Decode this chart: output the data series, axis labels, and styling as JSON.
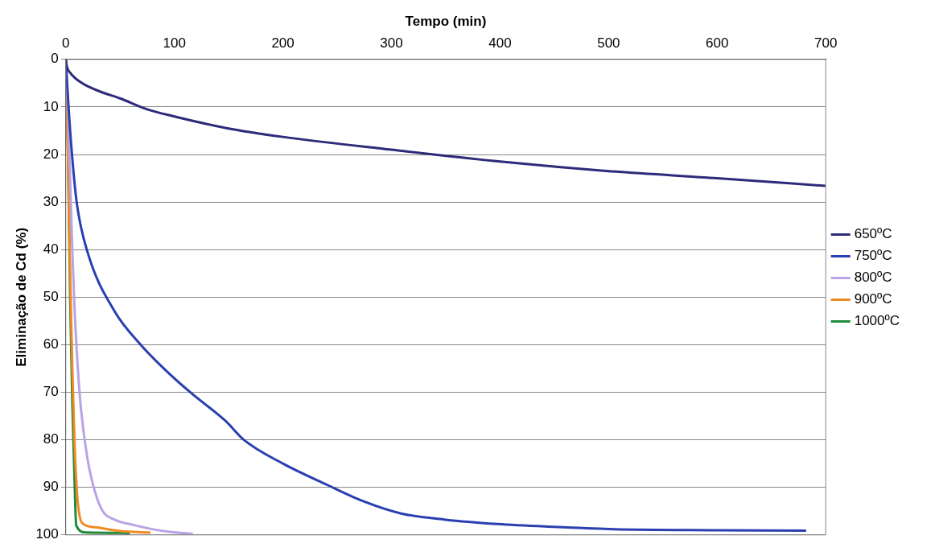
{
  "chart_data": {
    "type": "line",
    "xlabel": "Tempo (min)",
    "ylabel": "Eliminação de Cd (%)",
    "xlim": [
      0,
      700
    ],
    "xticks": [
      0,
      100,
      200,
      300,
      400,
      500,
      600,
      700
    ],
    "ylim": [
      100,
      0
    ],
    "yticks": [
      0,
      10,
      20,
      30,
      40,
      50,
      60,
      70,
      80,
      90,
      100
    ],
    "grid": "y",
    "legend": "right",
    "marker": "none",
    "line_style": "solid",
    "series": [
      {
        "name": "650ºC",
        "color": "#2e2a7a",
        "x": [
          0,
          1,
          4,
          15,
          32,
          50,
          75,
          100,
          147,
          200,
          300,
          400,
          500,
          600,
          700
        ],
        "values": [
          0,
          1.5,
          2.8,
          5,
          6.8,
          8.2,
          10.5,
          12,
          14.4,
          16.3,
          19,
          21.5,
          23.5,
          25,
          26.6
        ]
      },
      {
        "name": "750ºC",
        "color": "#2a3fb0",
        "x": [
          0,
          2,
          5,
          10,
          20,
          45,
          69,
          102,
          120,
          147,
          164,
          200,
          241,
          275,
          309,
          350,
          398,
          450,
          505,
          600,
          682
        ],
        "values": [
          0,
          8,
          18,
          30,
          40.5,
          53,
          60,
          67.5,
          71,
          76,
          80,
          85,
          89.5,
          93,
          95.5,
          96.8,
          97.7,
          98.3,
          98.8,
          99,
          99.1
        ]
      },
      {
        "name": "800ºC",
        "color": "#b9a3e6",
        "x": [
          0,
          2,
          4,
          6,
          8,
          13,
          20,
          27,
          34,
          45,
          62,
          90,
          117
        ],
        "values": [
          0,
          10,
          25,
          40,
          52,
          71,
          84,
          91,
          95,
          96.8,
          97.9,
          99.2,
          99.8
        ]
      },
      {
        "name": "900ºC",
        "color": "#f08a24",
        "x": [
          0,
          2,
          4,
          6,
          8,
          10,
          12,
          15,
          27,
          50,
          78
        ],
        "values": [
          0,
          20,
          45,
          65,
          80,
          90,
          95,
          97.5,
          98.4,
          99.2,
          99.5
        ]
      },
      {
        "name": "1000ºC",
        "color": "#1e8a3a",
        "x": [
          0,
          2,
          4,
          6,
          8,
          9.6,
          19,
          59
        ],
        "values": [
          0,
          20,
          50,
          72,
          88,
          98,
          99.5,
          99.6
        ]
      }
    ]
  }
}
